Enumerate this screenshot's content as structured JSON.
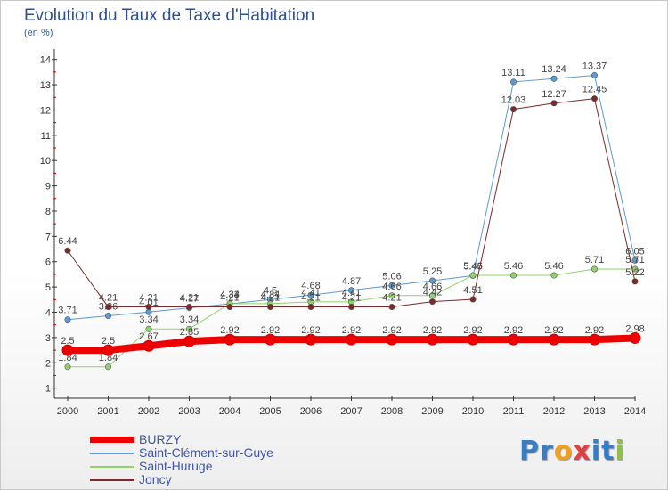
{
  "chart_data": {
    "type": "line",
    "title": "Evolution du Taux de Taxe d'Habitation",
    "subtitle": "(en %)",
    "x": [
      "2000",
      "2001",
      "2002",
      "2003",
      "2004",
      "2005",
      "2006",
      "2007",
      "2008",
      "2009",
      "2010",
      "2011",
      "2012",
      "2013",
      "2014"
    ],
    "ylim": [
      0.6,
      14.2
    ],
    "yticks": [
      "1",
      "2",
      "3",
      "4",
      "5",
      "6",
      "7",
      "8",
      "9",
      "10",
      "11",
      "12",
      "13",
      "14"
    ],
    "grid": false,
    "legend_position": "bottom-left",
    "series": [
      {
        "name": "Saint-Clément-sur-Guye",
        "color": "#5a9ad6",
        "width": 1,
        "values": [
          3.71,
          3.86,
          4.01,
          4.17,
          4.33,
          4.5,
          4.68,
          4.87,
          5.06,
          5.25,
          5.45,
          13.11,
          13.24,
          13.37,
          6.05
        ],
        "labels": [
          "3.71",
          "3.86",
          "4.01",
          "4.17",
          "4.33",
          "4.5",
          "4.68",
          "4.87",
          "5.06",
          "5.25",
          "5.45",
          "13.11",
          "13.24",
          "13.37",
          "6.05"
        ]
      },
      {
        "name": "Saint-Huruge",
        "color": "#8fd36a",
        "width": 1,
        "values": [
          1.84,
          1.84,
          3.34,
          3.34,
          4.34,
          4.34,
          4.41,
          4.41,
          4.66,
          4.66,
          5.46,
          5.46,
          5.46,
          5.71,
          5.71
        ],
        "labels": [
          "1.84",
          "1.84",
          "3.34",
          "3.34",
          "4.34",
          "4.34",
          "4.41",
          "4.41",
          "4.66",
          "4.66",
          "5.46",
          "5.46",
          "5.46",
          "5.71",
          "5.71"
        ]
      },
      {
        "name": "Joncy",
        "color": "#7a2a2a",
        "width": 1,
        "values": [
          6.44,
          4.21,
          4.21,
          4.21,
          4.21,
          4.21,
          4.21,
          4.21,
          4.21,
          4.42,
          4.51,
          12.03,
          12.27,
          12.45,
          5.22
        ],
        "labels": [
          "6.44",
          "4.21",
          "4.21",
          "4.21",
          "4.21",
          "4.21",
          "4.21",
          "4.21",
          "4.21",
          "4.42",
          "4.51",
          "12.03",
          "12.27",
          "12.45",
          "5.22"
        ]
      },
      {
        "name": "BURZY",
        "color": "#ee0000",
        "width": 8,
        "values": [
          2.5,
          2.5,
          2.67,
          2.85,
          2.92,
          2.92,
          2.92,
          2.92,
          2.92,
          2.92,
          2.92,
          2.92,
          2.92,
          2.92,
          2.98
        ],
        "labels": [
          "2.5",
          "2.5",
          "2.67",
          "2.85",
          "2.92",
          "2.92",
          "2.92",
          "2.92",
          "2.92",
          "2.92",
          "2.92",
          "2.92",
          "2.92",
          "2.92",
          "2.98"
        ]
      }
    ],
    "legend_order": [
      3,
      0,
      1,
      2
    ]
  },
  "logo": {
    "text": "Proxiti",
    "letters": [
      "P",
      "r",
      "o",
      "x",
      "i",
      "t",
      "i"
    ],
    "colors": [
      "#3a7cc4",
      "#3a7cc4",
      "#f0a020",
      "#e04040",
      "#3a7cc4",
      "#3a7cc4",
      "#8cc43a"
    ]
  }
}
